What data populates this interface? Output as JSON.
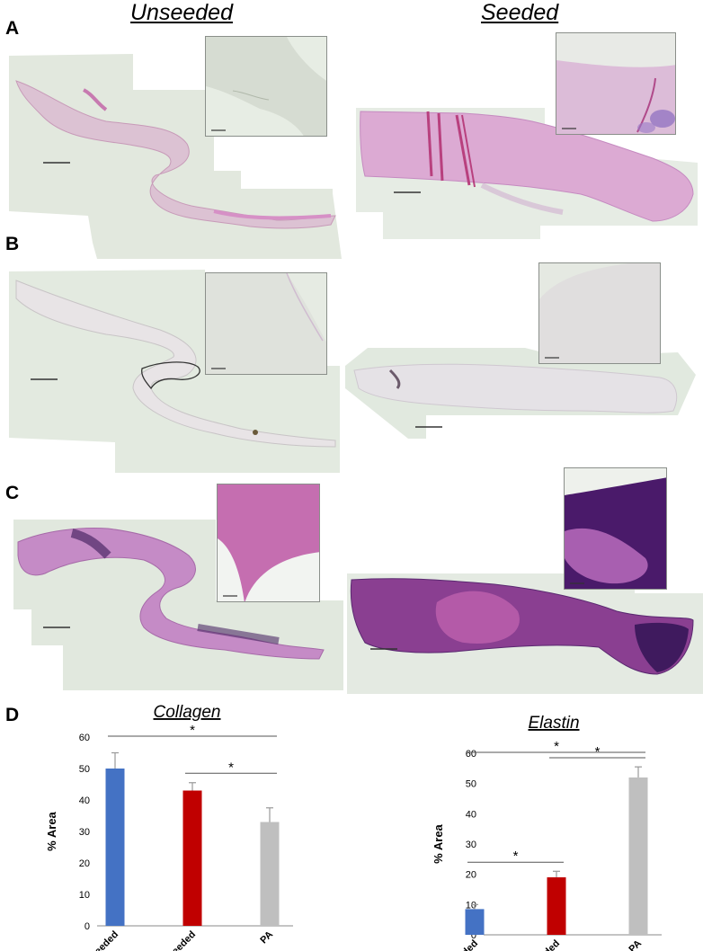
{
  "headers": {
    "left": "Unseeded",
    "right": "Seeded"
  },
  "panel_labels": {
    "a": "A",
    "b": "B",
    "c": "C",
    "d": "D"
  },
  "colors": {
    "he_stain": "#d8a8cf",
    "background_slide": "#e4ece2",
    "elastin_stain": "#e6e2e6",
    "trichrome_light": "#c48ac8",
    "trichrome_dark": "#4b1f6e",
    "bar_unseeded": "#4472c4",
    "bar_seeded": "#c00000",
    "bar_pa": "#bfbfbf"
  },
  "chart_data": [
    {
      "type": "bar",
      "title": "Collagen",
      "ylabel": "% Area",
      "categories": [
        "unseeded",
        "seeded",
        "PA"
      ],
      "values": [
        50,
        43,
        33
      ],
      "errors": [
        5,
        2.5,
        4.5
      ],
      "ylim": [
        0,
        60
      ],
      "yticks": [
        "0",
        "10",
        "20",
        "30",
        "40",
        "50",
        "60"
      ],
      "significance": [
        {
          "pair": [
            "unseeded",
            "PA"
          ],
          "label": "*"
        },
        {
          "pair": [
            "seeded",
            "PA"
          ],
          "label": "*"
        }
      ],
      "colors": [
        "#4472c4",
        "#c00000",
        "#bfbfbf"
      ],
      "grid": false
    },
    {
      "type": "bar",
      "title": "Elastin",
      "ylabel": "% Area",
      "categories": [
        "unseeded",
        "seeded",
        "PA"
      ],
      "values": [
        8.5,
        19,
        52
      ],
      "errors": [
        1.5,
        2,
        3.5
      ],
      "ylim": [
        0,
        60
      ],
      "yticks": [
        "0",
        "10",
        "20",
        "30",
        "40",
        "50",
        "60"
      ],
      "significance": [
        {
          "pair": [
            "unseeded",
            "PA"
          ],
          "label": "*"
        },
        {
          "pair": [
            "seeded",
            "PA"
          ],
          "label": "*"
        },
        {
          "pair": [
            "unseeded",
            "seeded"
          ],
          "label": "*"
        }
      ],
      "colors": [
        "#4472c4",
        "#c00000",
        "#bfbfbf"
      ],
      "grid": false
    }
  ]
}
